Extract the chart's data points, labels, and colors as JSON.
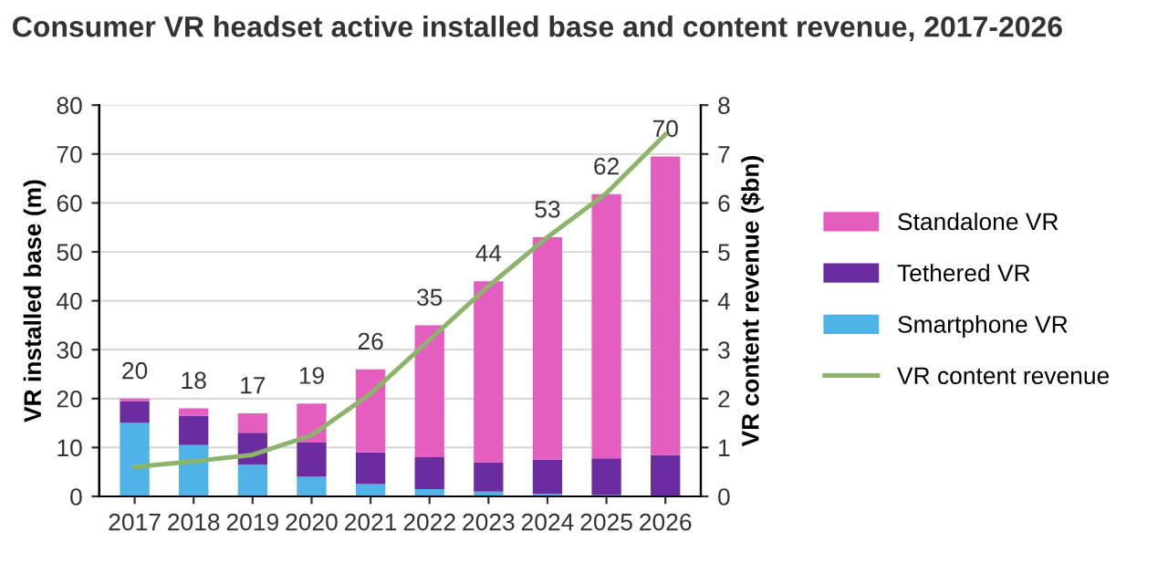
{
  "chart_data": {
    "type": "bar",
    "title": "Consumer VR headset active installed base and content revenue, 2017-2026",
    "categories": [
      "2017",
      "2018",
      "2019",
      "2020",
      "2021",
      "2022",
      "2023",
      "2024",
      "2025",
      "2026"
    ],
    "stacked": true,
    "series": [
      {
        "name": "Smartphone VR",
        "color": "#4fb3e8",
        "values": [
          15,
          10.5,
          6.5,
          4,
          2.5,
          1.5,
          1,
          0.5,
          0.3,
          null
        ]
      },
      {
        "name": "Tethered VR",
        "color": "#6a2ca0",
        "values": [
          4.5,
          6,
          6.5,
          7,
          6.5,
          6.5,
          6,
          7,
          7.5,
          8.5
        ]
      },
      {
        "name": "Standalone VR",
        "color": "#e45ec0",
        "values": [
          0.5,
          1.5,
          4,
          8,
          17,
          27,
          37,
          45.5,
          54,
          61
        ]
      },
      {
        "name": "VR content revenue",
        "color": "#8cb56a",
        "type": "line",
        "axis": "y2",
        "values": [
          0.6,
          0.72,
          0.85,
          1.25,
          2.1,
          3.2,
          4.3,
          5.3,
          6.2,
          7.4
        ]
      }
    ],
    "totals": [
      "20",
      "18",
      "17",
      "19",
      "26",
      "35",
      "44",
      "53",
      "62",
      "70"
    ],
    "ylabel": "VR installed base (m)",
    "y2label": "VR content revenue ($bn)",
    "ylim": [
      0,
      80
    ],
    "yticks": [
      0,
      10,
      20,
      30,
      40,
      50,
      60,
      70,
      80
    ],
    "y2lim": [
      0,
      8
    ],
    "y2ticks": [
      0,
      1,
      2,
      3,
      4,
      5,
      6,
      7,
      8
    ],
    "grid": "y",
    "legend": "right",
    "marker": "none",
    "line_style": "solid"
  }
}
